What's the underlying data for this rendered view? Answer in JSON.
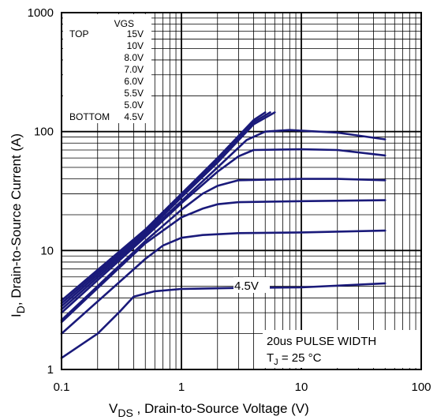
{
  "chart_data": {
    "type": "line",
    "xscale": "log",
    "yscale": "log",
    "xlim": [
      0.1,
      100
    ],
    "ylim": [
      1,
      1000
    ],
    "xticks": [
      "0.1",
      "1",
      "10",
      "100"
    ],
    "yticks": [
      "1",
      "10",
      "100",
      "1000"
    ],
    "xlabel": {
      "main": "V",
      "sub": "DS",
      "rest": " , Drain-to-Source Voltage (V)"
    },
    "ylabel": {
      "main": "I",
      "sub": "D",
      "rest": ",  Drain-to-Source Current (A)"
    },
    "legend": {
      "header": "VGS",
      "top_label": "TOP",
      "bottom_label": "BOTTOM",
      "entries": [
        "15V",
        "10V",
        "8.0V",
        "7.0V",
        "6.0V",
        "5.5V",
        "5.0V",
        "4.5V"
      ]
    },
    "annotations": {
      "curve_label": "4.5V",
      "pulse": "20us PULSE WIDTH",
      "tj_main": "T",
      "tj_sub": "J",
      "tj_rest": " = 25 °C"
    },
    "line_color": "#1a1a7a",
    "series": [
      {
        "name": "15V",
        "x": [
          0.1,
          0.5,
          1,
          2,
          4,
          5
        ],
        "y": [
          3.8,
          15,
          30,
          60,
          125,
          145
        ]
      },
      {
        "name": "10V",
        "x": [
          0.1,
          0.5,
          1,
          2,
          4,
          5.5
        ],
        "y": [
          3.6,
          14.5,
          29,
          58,
          120,
          145
        ]
      },
      {
        "name": "8.0V",
        "x": [
          0.1,
          0.5,
          1,
          2,
          4,
          6
        ],
        "y": [
          3.4,
          14,
          28,
          55,
          115,
          145
        ]
      },
      {
        "name": "7.0V",
        "x": [
          0.1,
          0.5,
          1,
          2,
          3.5,
          5,
          8,
          20,
          50
        ],
        "y": [
          3.2,
          13.5,
          26,
          50,
          85,
          100,
          103,
          98,
          86
        ]
      },
      {
        "name": "6.0V",
        "x": [
          0.1,
          0.5,
          1,
          2,
          3,
          4,
          10,
          20,
          50
        ],
        "y": [
          3.0,
          13,
          25,
          46,
          62,
          70,
          71,
          70,
          63
        ]
      },
      {
        "name": "5.5V",
        "x": [
          0.1,
          0.5,
          1,
          1.5,
          2,
          3,
          10,
          20,
          50
        ],
        "y": [
          2.6,
          12,
          22,
          30,
          35,
          39,
          40,
          40,
          39
        ]
      },
      {
        "name": "5.0V",
        "x": [
          0.1,
          0.5,
          1,
          1.5,
          2,
          3,
          10,
          50
        ],
        "y": [
          2.5,
          11.5,
          19,
          22.5,
          24.5,
          25.5,
          26,
          26.5
        ]
      },
      {
        "name": "4.5V-b",
        "x": [
          0.1,
          0.5,
          0.7,
          1,
          1.5,
          3,
          10,
          50
        ],
        "y": [
          2.0,
          8.5,
          11,
          12.8,
          13.5,
          14,
          14.2,
          14.7
        ]
      },
      {
        "name": "4.5V",
        "x": [
          0.1,
          0.2,
          0.3,
          0.4,
          0.6,
          1,
          3,
          10,
          50
        ],
        "y": [
          1.25,
          2.0,
          3.0,
          4.1,
          4.55,
          4.75,
          4.85,
          4.9,
          5.3
        ]
      }
    ]
  }
}
